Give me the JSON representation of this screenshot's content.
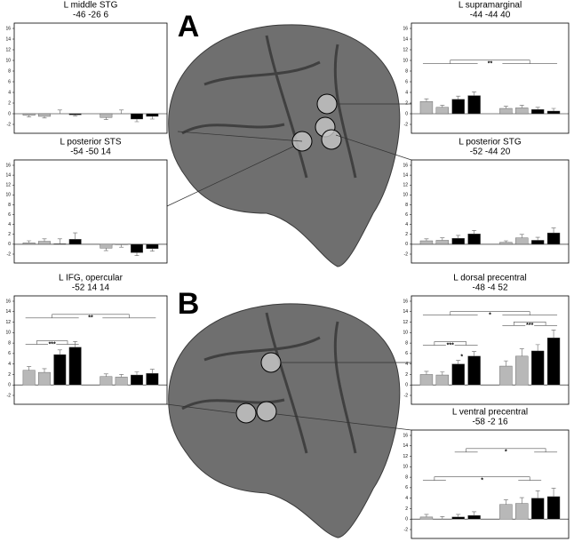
{
  "chart_data": [
    {
      "type": "bar",
      "title": "L middle STG",
      "subtitle": "-46 -26 6",
      "values": [
        -0.3,
        -0.5,
        0,
        -0.2,
        -0.7,
        0,
        -1.0,
        -0.5
      ],
      "errors": [
        0.3,
        0.3,
        0.7,
        0.2,
        0.4,
        0.7,
        0.5,
        0.5
      ],
      "colors": [
        "#b8b8b8",
        "#b8b8b8",
        "#000000",
        "#000000",
        "#b8b8b8",
        "#b8b8b8",
        "#000000",
        "#000000"
      ],
      "ylim": [
        -2,
        16
      ],
      "yticks": [
        -2,
        0,
        2,
        4,
        6,
        8,
        10,
        12,
        14,
        16
      ],
      "annotations": []
    },
    {
      "type": "bar",
      "title": "L posterior STS",
      "subtitle": "-54 -50 14",
      "values": [
        0.3,
        0.6,
        0.1,
        1.0,
        -0.8,
        -0.1,
        -1.7,
        -0.9
      ],
      "errors": [
        0.4,
        0.5,
        1.0,
        1.3,
        0.5,
        0.5,
        0.6,
        0.5
      ],
      "colors": [
        "#b8b8b8",
        "#b8b8b8",
        "#000000",
        "#000000",
        "#b8b8b8",
        "#b8b8b8",
        "#000000",
        "#000000"
      ],
      "ylim": [
        -2,
        16
      ],
      "yticks": [
        -2,
        0,
        2,
        4,
        6,
        8,
        10,
        12,
        14,
        16
      ],
      "annotations": []
    },
    {
      "type": "bar",
      "title": "L supramarginal",
      "subtitle": "-44 -44 40",
      "values": [
        2.3,
        1.2,
        2.7,
        3.4,
        1.0,
        1.1,
        0.8,
        0.5
      ],
      "errors": [
        0.5,
        0.4,
        0.6,
        0.7,
        0.4,
        0.5,
        0.4,
        0.5
      ],
      "colors": [
        "#b8b8b8",
        "#b8b8b8",
        "#000000",
        "#000000",
        "#b8b8b8",
        "#b8b8b8",
        "#000000",
        "#000000"
      ],
      "ylim": [
        -2,
        16
      ],
      "yticks": [
        -2,
        0,
        2,
        4,
        6,
        8,
        10,
        12,
        14,
        16
      ],
      "annotations": [
        "**"
      ]
    },
    {
      "type": "bar",
      "title": "L posterior STG",
      "subtitle": "-52 -44 20",
      "values": [
        0.7,
        0.8,
        1.2,
        2.1,
        0.4,
        1.3,
        0.8,
        2.3
      ],
      "errors": [
        0.4,
        0.5,
        0.6,
        0.7,
        0.3,
        0.7,
        0.6,
        1.0
      ],
      "colors": [
        "#b8b8b8",
        "#b8b8b8",
        "#000000",
        "#000000",
        "#b8b8b8",
        "#b8b8b8",
        "#000000",
        "#000000"
      ],
      "ylim": [
        -2,
        16
      ],
      "yticks": [
        -2,
        0,
        2,
        4,
        6,
        8,
        10,
        12,
        14,
        16
      ],
      "annotations": []
    },
    {
      "type": "bar",
      "title": "L IFG, opercular",
      "subtitle": "-52 14 14",
      "values": [
        2.8,
        2.4,
        5.8,
        7.2,
        1.6,
        1.5,
        1.9,
        2.2
      ],
      "errors": [
        0.7,
        0.7,
        0.9,
        1.1,
        0.5,
        0.5,
        0.6,
        0.8
      ],
      "colors": [
        "#b8b8b8",
        "#b8b8b8",
        "#000000",
        "#000000",
        "#b8b8b8",
        "#b8b8b8",
        "#000000",
        "#000000"
      ],
      "ylim": [
        -2,
        16
      ],
      "yticks": [
        -2,
        0,
        2,
        4,
        6,
        8,
        10,
        12,
        14,
        16
      ],
      "annotations": [
        "***",
        "**"
      ]
    },
    {
      "type": "bar",
      "title": "L dorsal precentral",
      "subtitle": "-48 -4 52",
      "values": [
        2.0,
        1.9,
        4.0,
        5.5,
        3.6,
        5.5,
        6.5,
        9.0
      ],
      "errors": [
        0.6,
        0.6,
        0.7,
        0.9,
        1.0,
        1.4,
        1.2,
        1.5
      ],
      "colors": [
        "#b8b8b8",
        "#b8b8b8",
        "#000000",
        "#000000",
        "#b8b8b8",
        "#b8b8b8",
        "#000000",
        "#000000"
      ],
      "ylim": [
        -2,
        16
      ],
      "yticks": [
        -2,
        0,
        2,
        4,
        6,
        8,
        10,
        12,
        14,
        16
      ],
      "annotations": [
        "*",
        "***",
        "***",
        "*"
      ]
    },
    {
      "type": "bar",
      "title": "L ventral precentral",
      "subtitle": "-58 -2 16",
      "values": [
        0.4,
        0,
        0.4,
        0.7,
        2.8,
        3.0,
        4.0,
        4.3
      ],
      "errors": [
        0.5,
        0.5,
        0.5,
        0.7,
        0.9,
        1.1,
        1.4,
        1.6
      ],
      "colors": [
        "#b8b8b8",
        "#b8b8b8",
        "#000000",
        "#000000",
        "#b8b8b8",
        "#b8b8b8",
        "#000000",
        "#000000"
      ],
      "ylim": [
        -2,
        16
      ],
      "yticks": [
        -2,
        0,
        2,
        4,
        6,
        8,
        10,
        12,
        14,
        16
      ],
      "annotations": [
        "*",
        "*"
      ]
    }
  ],
  "panels": [
    "A",
    "B"
  ]
}
